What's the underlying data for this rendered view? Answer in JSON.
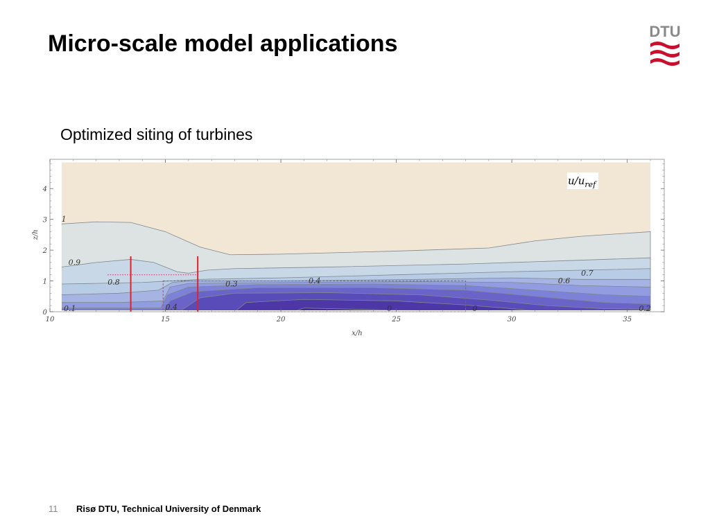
{
  "slide": {
    "title": "Micro-scale model applications",
    "subtitle": "Optimized siting of turbines",
    "page_number": "11",
    "footer": "Risø DTU, Technical University of Denmark",
    "logo_text": "DTU"
  },
  "colors": {
    "accent_red": "#c8102e",
    "turbine_red": "#e0202a",
    "background_sand": "#f2e6d5"
  },
  "chart_data": {
    "type": "heatmap",
    "title": "",
    "xlabel": "x/h",
    "ylabel": "z/h",
    "xlim": [
      10,
      36
    ],
    "ylim": [
      0,
      4.9
    ],
    "x_ticks": [
      10,
      15,
      20,
      25,
      30,
      35
    ],
    "y_ticks": [
      0,
      1,
      2,
      3,
      4
    ],
    "legend": {
      "label": "u/u",
      "subscript": "ref",
      "placement": "top-right"
    },
    "contour_levels": [
      1,
      0.9,
      0.8,
      0.7,
      0.6,
      0.5,
      0.4,
      0.3,
      0.2,
      0.1,
      0
    ],
    "contour_labels": [
      {
        "text": "1",
        "x": 10.5,
        "y": 2.9
      },
      {
        "text": "0.9",
        "x": 10.8,
        "y": 1.5
      },
      {
        "text": "0.8",
        "x": 12.5,
        "y": 0.85
      },
      {
        "text": "0.1",
        "x": 10.6,
        "y": 0.0
      },
      {
        "text": "0.4",
        "x": 15.0,
        "y": 0.05
      },
      {
        "text": "0.3",
        "x": 17.6,
        "y": 0.8
      },
      {
        "text": "0.4",
        "x": 21.2,
        "y": 0.9
      },
      {
        "text": "0",
        "x": 24.6,
        "y": 0.0
      },
      {
        "text": "0",
        "x": 28.3,
        "y": 0.0
      },
      {
        "text": "0.6",
        "x": 32.0,
        "y": 0.9
      },
      {
        "text": "0.7",
        "x": 33.0,
        "y": 1.15
      },
      {
        "text": "0.2",
        "x": 35.5,
        "y": 0.0
      }
    ],
    "turbines": [
      {
        "x": 13.5,
        "z_bottom": 0,
        "z_top": 1.8
      },
      {
        "x": 16.4,
        "z_bottom": 0,
        "z_top": 1.8
      }
    ],
    "hub_height_line": {
      "x_start": 12.5,
      "x_end": 16.4,
      "z": 1.2
    },
    "wake_box": {
      "x_start": 14.9,
      "x_end": 28.0,
      "z_bottom": 0,
      "z_top": 1.0
    }
  }
}
